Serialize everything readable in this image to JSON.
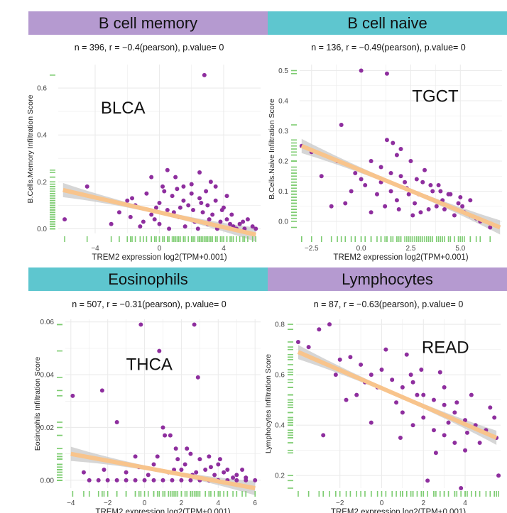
{
  "colors": {
    "purple": "#b59ad0",
    "teal": "#5ec6cf",
    "points": "#8e2e9e",
    "fit_line": "#f8c48c",
    "ribbon": "#c8c8c8",
    "rug": "#7dcc71",
    "grid": "#ebebeb"
  },
  "chart_data": [
    {
      "type": "scatter",
      "title": "B cell memory",
      "title_color": "purple",
      "subtitle": "n = 396, r = −0.4(pearson), p.value= 0",
      "annotation": "BLCA",
      "xlabel": "TREM2 expression log2(TPM+0.001)",
      "ylabel": "B.Cells.Memory Infiltration Score",
      "xlim": [
        -6.3,
        6.3
      ],
      "ylim": [
        -0.02,
        0.7
      ],
      "xticks": [
        -4,
        0,
        4
      ],
      "xtick_labels": [
        "−4",
        "0",
        "4"
      ],
      "yticks": [
        0.0,
        0.2,
        0.4,
        0.6
      ],
      "ytick_labels": [
        "0.0",
        "0.2",
        "0.4",
        "0.6"
      ],
      "grid": true,
      "fit": {
        "x": [
          -6,
          6
        ],
        "y": [
          0.165,
          -0.025
        ]
      },
      "points": [
        [
          -5.9,
          0.04
        ],
        [
          -4.5,
          0.18
        ],
        [
          2.8,
          0.655
        ],
        [
          -1.5,
          0.1
        ],
        [
          -0.5,
          0.22
        ],
        [
          0.0,
          0.11
        ],
        [
          0.2,
          0.18
        ],
        [
          0.5,
          0.25
        ],
        [
          1.0,
          0.22
        ],
        [
          1.5,
          0.18
        ],
        [
          2.0,
          0.15
        ],
        [
          2.5,
          0.24
        ],
        [
          3.2,
          0.2
        ],
        [
          3.5,
          0.18
        ],
        [
          4.2,
          0.14
        ],
        [
          -2.5,
          0.07
        ],
        [
          -1.8,
          0.05
        ],
        [
          -1.0,
          0.03
        ],
        [
          -0.5,
          0.06
        ],
        [
          0.0,
          0.02
        ],
        [
          0.5,
          0.08
        ],
        [
          1.2,
          0.05
        ],
        [
          1.8,
          0.1
        ],
        [
          2.2,
          0.03
        ],
        [
          2.7,
          0.07
        ],
        [
          3.0,
          0.02
        ],
        [
          3.3,
          0.06
        ],
        [
          3.8,
          0.03
        ],
        [
          4.2,
          0.04
        ],
        [
          4.6,
          0.01
        ],
        [
          5.0,
          0.02
        ],
        [
          5.3,
          0.0
        ],
        [
          5.8,
          0.01
        ],
        [
          -3.0,
          0.02
        ],
        [
          -2.0,
          0.12
        ],
        [
          0.8,
          0.14
        ],
        [
          1.5,
          0.12
        ],
        [
          2.5,
          0.13
        ],
        [
          3.0,
          0.1
        ],
        [
          4.0,
          0.09
        ],
        [
          -0.8,
          0.15
        ],
        [
          0.3,
          0.16
        ],
        [
          1.1,
          0.17
        ],
        [
          2.0,
          0.19
        ],
        [
          2.9,
          0.16
        ],
        [
          3.5,
          0.12
        ],
        [
          4.5,
          0.06
        ],
        [
          -1.2,
          0.01
        ],
        [
          0.6,
          0.0
        ],
        [
          1.6,
          0.01
        ],
        [
          2.4,
          0.0
        ],
        [
          3.6,
          0.0
        ],
        [
          4.8,
          0.0
        ],
        [
          6.0,
          0.0
        ],
        [
          5.5,
          0.04
        ],
        [
          -0.2,
          0.09
        ],
        [
          1.3,
          0.09
        ],
        [
          2.1,
          0.08
        ],
        [
          3.1,
          0.04
        ],
        [
          4.4,
          0.02
        ],
        [
          -1.7,
          0.13
        ],
        [
          -0.3,
          0.04
        ],
        [
          0.9,
          0.07
        ],
        [
          2.6,
          0.11
        ],
        [
          3.9,
          0.08
        ],
        [
          5.2,
          0.03
        ]
      ]
    },
    {
      "type": "scatter",
      "title": "B cell naive",
      "title_color": "teal",
      "subtitle": "n = 136, r = −0.49(pearson), p.value= 0",
      "annotation": "TGCT",
      "xlabel": "TREM2 expression log2(TPM+0.001)",
      "ylabel": "B.Cells.Naive Infiltration Score",
      "xlim": [
        -3.1,
        7.1
      ],
      "ylim": [
        -0.04,
        0.52
      ],
      "xticks": [
        -2.5,
        0.0,
        2.5,
        5.0
      ],
      "xtick_labels": [
        "−2.5",
        "0.0",
        "2.5",
        "5.0"
      ],
      "yticks": [
        0.0,
        0.1,
        0.2,
        0.3,
        0.4,
        0.5
      ],
      "ytick_labels": [
        "0.0",
        "0.1",
        "0.2",
        "0.3",
        "0.4",
        "0.5"
      ],
      "grid": true,
      "fit": {
        "x": [
          -3.0,
          7.0
        ],
        "y": [
          0.25,
          -0.02
        ]
      },
      "points": [
        [
          0.0,
          0.5
        ],
        [
          1.3,
          0.49
        ],
        [
          -1.0,
          0.32
        ],
        [
          -3.0,
          0.25
        ],
        [
          -2.5,
          0.23
        ],
        [
          1.3,
          0.27
        ],
        [
          1.6,
          0.26
        ],
        [
          2.0,
          0.24
        ],
        [
          1.8,
          0.22
        ],
        [
          2.5,
          0.2
        ],
        [
          0.5,
          0.2
        ],
        [
          1.0,
          0.18
        ],
        [
          1.5,
          0.16
        ],
        [
          2.0,
          0.15
        ],
        [
          2.8,
          0.14
        ],
        [
          3.2,
          0.17
        ],
        [
          3.5,
          0.12
        ],
        [
          4.0,
          0.1
        ],
        [
          4.5,
          0.09
        ],
        [
          5.0,
          0.08
        ],
        [
          5.5,
          0.07
        ],
        [
          -0.5,
          0.1
        ],
        [
          0.2,
          0.12
        ],
        [
          0.8,
          0.09
        ],
        [
          1.2,
          0.05
        ],
        [
          1.8,
          0.07
        ],
        [
          2.3,
          0.11
        ],
        [
          2.7,
          0.06
        ],
        [
          3.0,
          0.03
        ],
        [
          3.3,
          0.08
        ],
        [
          3.8,
          0.05
        ],
        [
          4.2,
          0.04
        ],
        [
          4.7,
          0.02
        ],
        [
          5.2,
          0.03
        ],
        [
          5.8,
          0.01
        ],
        [
          6.5,
          -0.02
        ],
        [
          -1.5,
          0.05
        ],
        [
          -0.8,
          0.06
        ],
        [
          0.5,
          0.03
        ],
        [
          1.5,
          0.1
        ],
        [
          2.2,
          0.13
        ],
        [
          2.9,
          0.09
        ],
        [
          3.6,
          0.1
        ],
        [
          4.1,
          0.07
        ],
        [
          4.9,
          0.06
        ],
        [
          6.0,
          0.0
        ],
        [
          -2.0,
          0.15
        ],
        [
          0.0,
          0.14
        ],
        [
          1.0,
          0.13
        ],
        [
          2.6,
          0.02
        ],
        [
          3.4,
          0.04
        ],
        [
          5.5,
          0.02
        ],
        [
          -1.2,
          0.2
        ],
        [
          3.9,
          0.12
        ],
        [
          1.9,
          0.04
        ],
        [
          2.4,
          0.09
        ],
        [
          4.4,
          0.09
        ],
        [
          -0.3,
          0.16
        ],
        [
          3.1,
          0.13
        ],
        [
          5.1,
          0.05
        ]
      ]
    },
    {
      "type": "scatter",
      "title": "Eosinophils",
      "title_color": "teal",
      "subtitle": "n = 507, r = −0.31(pearson), p.value= 0",
      "annotation": "THCA",
      "xlabel": "TREM2 expression log2(TPM+0.001)",
      "ylabel": "Eosinophils Infiltration Score",
      "xlim": [
        -4.3,
        6.3
      ],
      "ylim": [
        -0.003,
        0.061
      ],
      "xticks": [
        -4,
        -2,
        0,
        2,
        4,
        6
      ],
      "xtick_labels": [
        "−4",
        "−2",
        "0",
        "2",
        "4",
        "6"
      ],
      "yticks": [
        0.0,
        0.02,
        0.04,
        0.06
      ],
      "ytick_labels": [
        "0.00",
        "0.02",
        "0.04",
        "0.06"
      ],
      "grid": true,
      "fit": {
        "x": [
          -4,
          6
        ],
        "y": [
          0.01,
          -0.003
        ]
      },
      "points": [
        [
          -3.9,
          0.032
        ],
        [
          -2.3,
          0.034
        ],
        [
          -0.2,
          0.059
        ],
        [
          2.7,
          0.059
        ],
        [
          0.8,
          0.049
        ],
        [
          2.9,
          0.039
        ],
        [
          -1.5,
          0.022
        ],
        [
          1.0,
          0.02
        ],
        [
          1.1,
          0.017
        ],
        [
          1.4,
          0.017
        ],
        [
          2.3,
          0.012
        ],
        [
          -0.5,
          0.009
        ],
        [
          0.5,
          0.006
        ],
        [
          1.8,
          0.008
        ],
        [
          2.5,
          0.01
        ],
        [
          3.0,
          0.008
        ],
        [
          3.5,
          0.009
        ],
        [
          4.0,
          0.006
        ],
        [
          4.5,
          0.004
        ],
        [
          5.0,
          0.002
        ],
        [
          5.5,
          0.001
        ],
        [
          6.0,
          0.0
        ],
        [
          -3.0,
          0.0
        ],
        [
          -2.5,
          0.0
        ],
        [
          -2.0,
          0.0
        ],
        [
          -1.5,
          0.0
        ],
        [
          -1.0,
          0.0
        ],
        [
          -0.5,
          0.0
        ],
        [
          0.0,
          0.0
        ],
        [
          0.5,
          0.0
        ],
        [
          1.0,
          0.0
        ],
        [
          1.5,
          0.0
        ],
        [
          2.0,
          0.0
        ],
        [
          2.5,
          0.0
        ],
        [
          3.0,
          0.0
        ],
        [
          3.5,
          0.0
        ],
        [
          4.0,
          0.0
        ],
        [
          4.5,
          0.0
        ],
        [
          5.0,
          0.0
        ],
        [
          5.5,
          0.0
        ],
        [
          -3.3,
          0.003
        ],
        [
          -2.2,
          0.004
        ],
        [
          -1.0,
          0.003
        ],
        [
          0.2,
          0.002
        ],
        [
          1.3,
          0.003
        ],
        [
          2.0,
          0.004
        ],
        [
          2.8,
          0.003
        ],
        [
          3.3,
          0.004
        ],
        [
          3.8,
          0.002
        ],
        [
          4.3,
          0.003
        ],
        [
          4.8,
          0.001
        ],
        [
          5.3,
          0.004
        ],
        [
          1.7,
          0.012
        ],
        [
          2.2,
          0.006
        ],
        [
          0.7,
          0.009
        ],
        [
          3.6,
          0.005
        ],
        [
          4.1,
          0.008
        ],
        [
          -0.3,
          0.005
        ],
        [
          1.6,
          0.004
        ],
        [
          2.6,
          0.002
        ]
      ]
    },
    {
      "type": "scatter",
      "title": "Lymphocytes",
      "title_color": "purple",
      "subtitle": "n = 87, r = −0.63(pearson), p.value= 0",
      "annotation": "READ",
      "xlabel": "TREM2 expression log2(TPM+0.001)",
      "ylabel": "Lymphocytes Infiltration Score",
      "xlim": [
        -4.1,
        5.7
      ],
      "ylim": [
        0.15,
        0.82
      ],
      "xticks": [
        -2,
        0,
        2,
        4
      ],
      "xtick_labels": [
        "−2",
        "0",
        "2",
        "4"
      ],
      "yticks": [
        0.2,
        0.4,
        0.6,
        0.8
      ],
      "ytick_labels": [
        "0.2",
        "0.4",
        "0.6",
        "0.8"
      ],
      "grid": true,
      "fit": {
        "x": [
          -4.0,
          5.5
        ],
        "y": [
          0.69,
          0.35
        ]
      },
      "points": [
        [
          -4.0,
          0.73
        ],
        [
          -3.0,
          0.78
        ],
        [
          -2.5,
          0.8
        ],
        [
          -3.5,
          0.71
        ],
        [
          -2.0,
          0.66
        ],
        [
          -1.5,
          0.67
        ],
        [
          -1.0,
          0.64
        ],
        [
          -0.5,
          0.6
        ],
        [
          0.0,
          0.62
        ],
        [
          0.5,
          0.58
        ],
        [
          1.0,
          0.55
        ],
        [
          1.5,
          0.57
        ],
        [
          2.0,
          0.52
        ],
        [
          2.5,
          0.5
        ],
        [
          3.0,
          0.48
        ],
        [
          3.5,
          0.45
        ],
        [
          4.0,
          0.42
        ],
        [
          4.5,
          0.4
        ],
        [
          5.0,
          0.38
        ],
        [
          5.5,
          0.35
        ],
        [
          -2.8,
          0.36
        ],
        [
          -0.5,
          0.41
        ],
        [
          1.0,
          0.45
        ],
        [
          1.5,
          0.4
        ],
        [
          2.0,
          0.43
        ],
        [
          2.5,
          0.38
        ],
        [
          3.0,
          0.36
        ],
        [
          3.5,
          0.33
        ],
        [
          4.0,
          0.3
        ],
        [
          2.2,
          0.18
        ],
        [
          3.8,
          0.15
        ],
        [
          5.6,
          0.2
        ],
        [
          0.2,
          0.7
        ],
        [
          1.2,
          0.68
        ],
        [
          2.8,
          0.61
        ],
        [
          4.3,
          0.52
        ],
        [
          5.2,
          0.47
        ],
        [
          -1.2,
          0.52
        ],
        [
          0.7,
          0.49
        ],
        [
          1.7,
          0.52
        ],
        [
          3.2,
          0.41
        ],
        [
          4.7,
          0.33
        ],
        [
          -2.2,
          0.6
        ],
        [
          -0.2,
          0.55
        ],
        [
          1.9,
          0.62
        ],
        [
          3.0,
          0.55
        ],
        [
          4.1,
          0.37
        ],
        [
          0.9,
          0.35
        ],
        [
          2.6,
          0.29
        ],
        [
          -1.7,
          0.5
        ],
        [
          3.6,
          0.49
        ],
        [
          5.4,
          0.43
        ],
        [
          1.4,
          0.6
        ],
        [
          -0.8,
          0.57
        ]
      ]
    }
  ]
}
